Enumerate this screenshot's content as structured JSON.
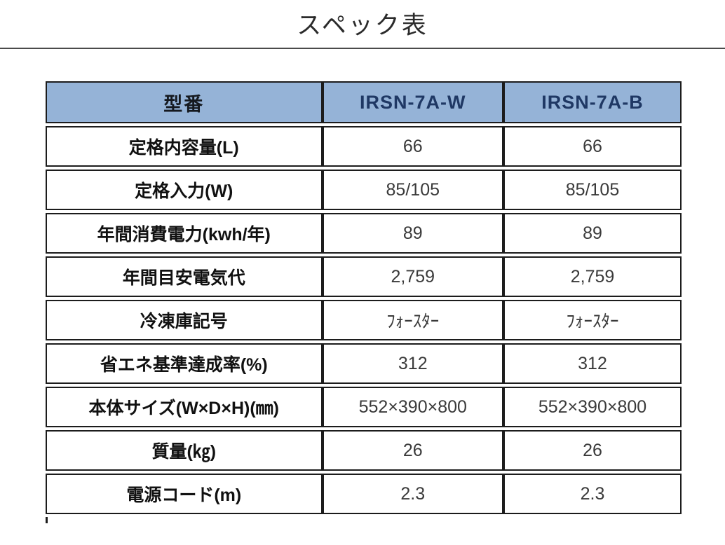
{
  "title": "スペック表",
  "table": {
    "header": [
      "型番",
      "IRSN-7A-W",
      "IRSN-7A-B"
    ],
    "rows": [
      [
        "定格内容量(L)",
        "66",
        "66"
      ],
      [
        "定格入力(W)",
        "85/105",
        "85/105"
      ],
      [
        "年間消費電力(kwh/年)",
        "89",
        "89"
      ],
      [
        "年間目安電気代",
        "2,759",
        "2,759"
      ],
      [
        "冷凍庫記号",
        "ﾌｫｰｽﾀｰ",
        "ﾌｫｰｽﾀｰ"
      ],
      [
        "省エネ基準達成率(%)",
        "312",
        "312"
      ],
      [
        "本体サイズ(W×D×H)(㎜)",
        "552×390×800",
        "552×390×800"
      ],
      [
        "質量(㎏)",
        "26",
        "26"
      ],
      [
        "電源コード(m)",
        "2.3",
        "2.3"
      ]
    ]
  },
  "colors": {
    "header_bg": "#95b3d7",
    "header_model_text": "#1f3864",
    "header_label_text": "#15191f",
    "border": "#1c1c1c",
    "label_text": "#111111",
    "value_text": "#3a3a3a",
    "title_text": "#2b2b2b"
  }
}
